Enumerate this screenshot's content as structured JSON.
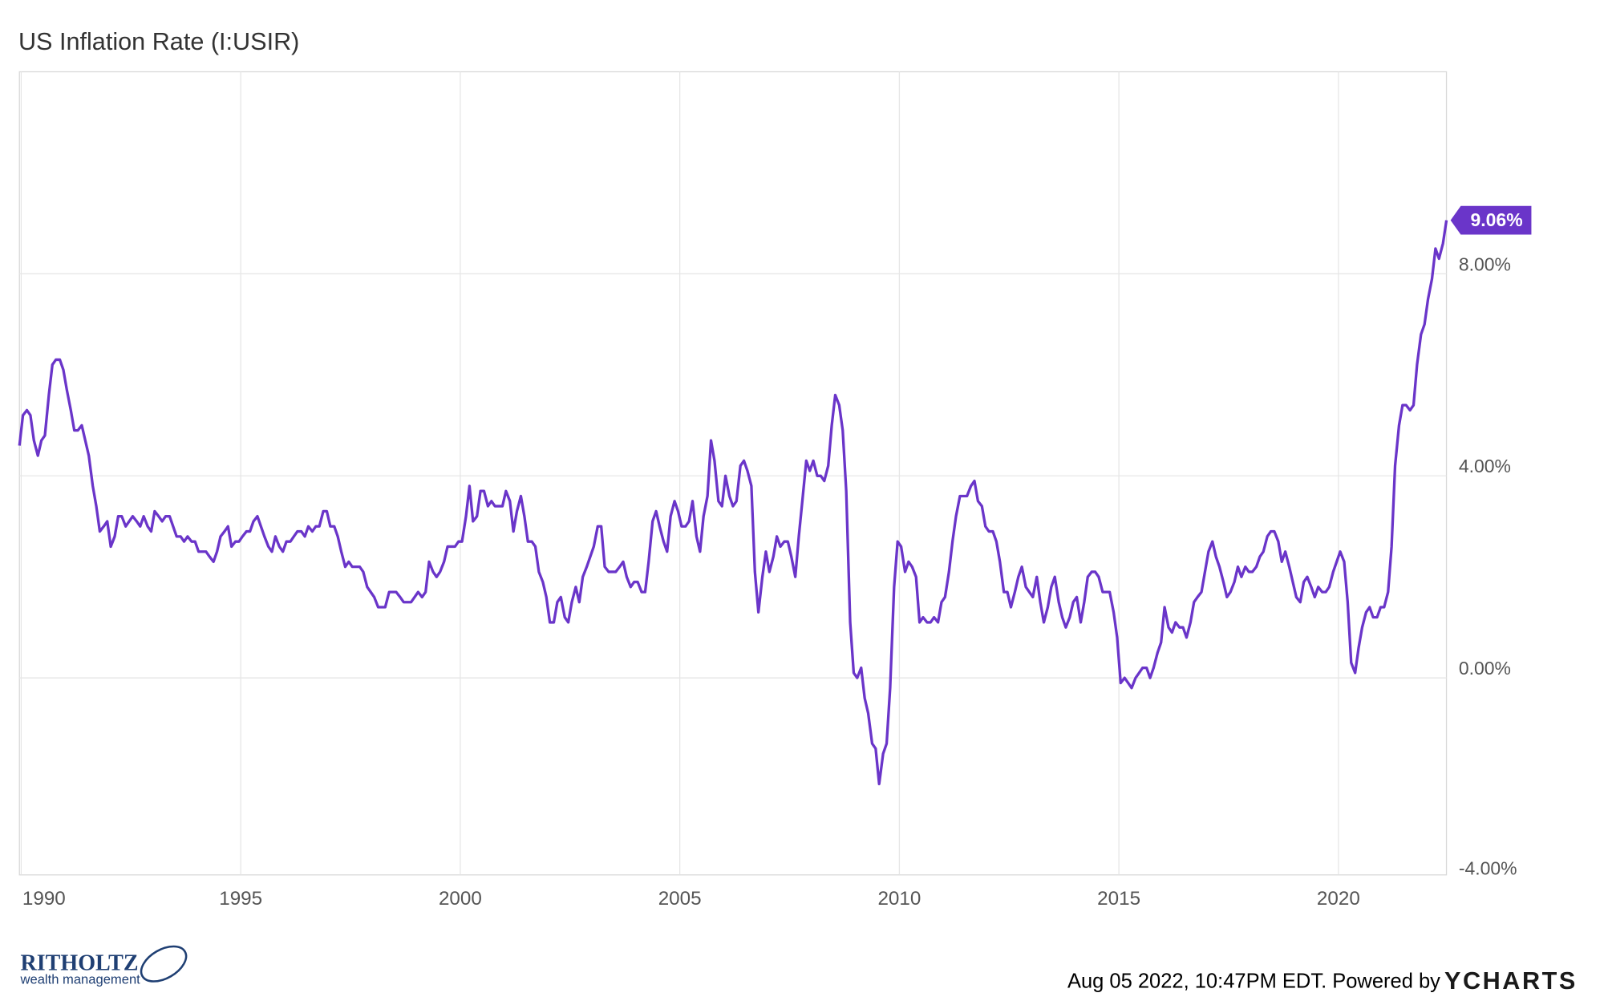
{
  "chart_data": {
    "type": "line",
    "title": "US Inflation Rate (I:USIR)",
    "color": "#6a35c9",
    "end_label": "9.06%",
    "xlim": [
      1989.96,
      2022.46
    ],
    "xticks": [
      1990,
      1995,
      2000,
      2005,
      2010,
      2015,
      2020
    ],
    "ylim": [
      -3.9,
      12
    ],
    "yticks": [
      {
        "value": -4,
        "label": "-4.00%"
      },
      {
        "value": 0,
        "label": "0.00%"
      },
      {
        "value": 4,
        "label": "4.00%"
      },
      {
        "value": 8,
        "label": "8.00%"
      }
    ],
    "grid": true,
    "x": [
      1989.96,
      1990.04,
      1990.13,
      1990.21,
      1990.29,
      1990.38,
      1990.46,
      1990.54,
      1990.63,
      1990.71,
      1990.79,
      1990.88,
      1990.96,
      1991.04,
      1991.13,
      1991.21,
      1991.29,
      1991.38,
      1991.46,
      1991.54,
      1991.63,
      1991.71,
      1991.79,
      1991.88,
      1991.96,
      1992.04,
      1992.13,
      1992.21,
      1992.29,
      1992.38,
      1992.46,
      1992.54,
      1992.63,
      1992.71,
      1992.79,
      1992.88,
      1992.96,
      1993.04,
      1993.13,
      1993.21,
      1993.29,
      1993.38,
      1993.46,
      1993.54,
      1993.63,
      1993.71,
      1993.79,
      1993.88,
      1993.96,
      1994.04,
      1994.13,
      1994.21,
      1994.29,
      1994.38,
      1994.46,
      1994.54,
      1994.63,
      1994.71,
      1994.79,
      1994.88,
      1994.96,
      1995.04,
      1995.13,
      1995.21,
      1995.29,
      1995.38,
      1995.46,
      1995.54,
      1995.63,
      1995.71,
      1995.79,
      1995.88,
      1995.96,
      1996.04,
      1996.13,
      1996.21,
      1996.29,
      1996.38,
      1996.46,
      1996.54,
      1996.63,
      1996.71,
      1996.79,
      1996.88,
      1996.96,
      1997.04,
      1997.13,
      1997.21,
      1997.29,
      1997.38,
      1997.46,
      1997.54,
      1997.63,
      1997.71,
      1997.79,
      1997.88,
      1997.96,
      1998.04,
      1998.13,
      1998.21,
      1998.29,
      1998.38,
      1998.46,
      1998.54,
      1998.63,
      1998.71,
      1998.79,
      1998.88,
      1998.96,
      1999.04,
      1999.13,
      1999.21,
      1999.29,
      1999.38,
      1999.46,
      1999.54,
      1999.63,
      1999.71,
      1999.79,
      1999.88,
      1999.96,
      2000.04,
      2000.13,
      2000.21,
      2000.29,
      2000.38,
      2000.46,
      2000.54,
      2000.63,
      2000.71,
      2000.79,
      2000.88,
      2000.96,
      2001.04,
      2001.13,
      2001.21,
      2001.29,
      2001.38,
      2001.46,
      2001.54,
      2001.63,
      2001.71,
      2001.79,
      2001.88,
      2001.96,
      2002.04,
      2002.13,
      2002.21,
      2002.29,
      2002.38,
      2002.46,
      2002.54,
      2002.63,
      2002.71,
      2002.79,
      2002.88,
      2002.96,
      2003.04,
      2003.13,
      2003.21,
      2003.29,
      2003.38,
      2003.46,
      2003.54,
      2003.63,
      2003.71,
      2003.79,
      2003.88,
      2003.96,
      2004.04,
      2004.13,
      2004.21,
      2004.29,
      2004.38,
      2004.46,
      2004.54,
      2004.63,
      2004.71,
      2004.79,
      2004.88,
      2004.96,
      2005.04,
      2005.13,
      2005.21,
      2005.29,
      2005.38,
      2005.46,
      2005.54,
      2005.63,
      2005.71,
      2005.79,
      2005.88,
      2005.96,
      2006.04,
      2006.13,
      2006.21,
      2006.29,
      2006.38,
      2006.46,
      2006.54,
      2006.63,
      2006.71,
      2006.79,
      2006.88,
      2006.96,
      2007.04,
      2007.13,
      2007.21,
      2007.29,
      2007.38,
      2007.46,
      2007.54,
      2007.63,
      2007.71,
      2007.79,
      2007.88,
      2007.96,
      2008.04,
      2008.13,
      2008.21,
      2008.29,
      2008.38,
      2008.46,
      2008.54,
      2008.63,
      2008.71,
      2008.79,
      2008.88,
      2008.96,
      2009.04,
      2009.13,
      2009.21,
      2009.29,
      2009.38,
      2009.46,
      2009.54,
      2009.63,
      2009.71,
      2009.79,
      2009.88,
      2009.96,
      2010.04,
      2010.13,
      2010.21,
      2010.29,
      2010.38,
      2010.46,
      2010.54,
      2010.63,
      2010.71,
      2010.79,
      2010.88,
      2010.96,
      2011.04,
      2011.13,
      2011.21,
      2011.29,
      2011.38,
      2011.46,
      2011.54,
      2011.63,
      2011.71,
      2011.79,
      2011.88,
      2011.96,
      2012.04,
      2012.13,
      2012.21,
      2012.29,
      2012.38,
      2012.46,
      2012.54,
      2012.63,
      2012.71,
      2012.79,
      2012.88,
      2012.96,
      2013.04,
      2013.13,
      2013.21,
      2013.29,
      2013.38,
      2013.46,
      2013.54,
      2013.63,
      2013.71,
      2013.79,
      2013.88,
      2013.96,
      2014.04,
      2014.13,
      2014.21,
      2014.29,
      2014.38,
      2014.46,
      2014.54,
      2014.63,
      2014.71,
      2014.79,
      2014.88,
      2014.96,
      2015.04,
      2015.13,
      2015.21,
      2015.29,
      2015.38,
      2015.46,
      2015.54,
      2015.63,
      2015.71,
      2015.79,
      2015.88,
      2015.96,
      2016.04,
      2016.13,
      2016.21,
      2016.29,
      2016.38,
      2016.46,
      2016.54,
      2016.63,
      2016.71,
      2016.79,
      2016.88,
      2016.96,
      2017.04,
      2017.13,
      2017.21,
      2017.29,
      2017.38,
      2017.46,
      2017.54,
      2017.63,
      2017.71,
      2017.79,
      2017.88,
      2017.96,
      2018.04,
      2018.13,
      2018.21,
      2018.29,
      2018.38,
      2018.46,
      2018.54,
      2018.63,
      2018.71,
      2018.79,
      2018.88,
      2018.96,
      2019.04,
      2019.13,
      2019.21,
      2019.29,
      2019.38,
      2019.46,
      2019.54,
      2019.63,
      2019.71,
      2019.79,
      2019.88,
      2019.96,
      2020.04,
      2020.13,
      2020.21,
      2020.29,
      2020.38,
      2020.46,
      2020.54,
      2020.63,
      2020.71,
      2020.79,
      2020.88,
      2020.96,
      2021.04,
      2021.13,
      2021.21,
      2021.29,
      2021.38,
      2021.46,
      2021.54,
      2021.63,
      2021.71,
      2021.79,
      2021.88,
      2021.96,
      2022.04,
      2022.13,
      2022.21,
      2022.29,
      2022.38,
      2022.46
    ],
    "values": [
      4.6,
      5.2,
      5.3,
      5.2,
      4.7,
      4.4,
      4.7,
      4.8,
      5.6,
      6.2,
      6.3,
      6.3,
      6.1,
      5.7,
      5.3,
      4.9,
      4.9,
      5.0,
      4.7,
      4.4,
      3.8,
      3.4,
      2.9,
      3.0,
      3.1,
      2.6,
      2.8,
      3.2,
      3.2,
      3.0,
      3.1,
      3.2,
      3.1,
      3.0,
      3.2,
      3.0,
      2.9,
      3.3,
      3.2,
      3.1,
      3.2,
      3.2,
      3.0,
      2.8,
      2.8,
      2.7,
      2.8,
      2.7,
      2.7,
      2.5,
      2.5,
      2.5,
      2.4,
      2.3,
      2.5,
      2.8,
      2.9,
      3.0,
      2.6,
      2.7,
      2.7,
      2.8,
      2.9,
      2.9,
      3.1,
      3.2,
      3.0,
      2.8,
      2.6,
      2.5,
      2.8,
      2.6,
      2.5,
      2.7,
      2.7,
      2.8,
      2.9,
      2.9,
      2.8,
      3.0,
      2.9,
      3.0,
      3.0,
      3.3,
      3.3,
      3.0,
      3.0,
      2.8,
      2.5,
      2.2,
      2.3,
      2.2,
      2.2,
      2.2,
      2.1,
      1.8,
      1.7,
      1.6,
      1.4,
      1.4,
      1.4,
      1.7,
      1.7,
      1.7,
      1.6,
      1.5,
      1.5,
      1.5,
      1.6,
      1.7,
      1.6,
      1.7,
      2.3,
      2.1,
      2.0,
      2.1,
      2.3,
      2.6,
      2.6,
      2.6,
      2.7,
      2.7,
      3.2,
      3.8,
      3.1,
      3.2,
      3.7,
      3.7,
      3.4,
      3.5,
      3.4,
      3.4,
      3.4,
      3.7,
      3.5,
      2.9,
      3.3,
      3.6,
      3.2,
      2.7,
      2.7,
      2.6,
      2.1,
      1.9,
      1.6,
      1.1,
      1.1,
      1.5,
      1.6,
      1.2,
      1.1,
      1.5,
      1.8,
      1.5,
      2.0,
      2.2,
      2.4,
      2.6,
      3.0,
      3.0,
      2.2,
      2.1,
      2.1,
      2.1,
      2.2,
      2.3,
      2.0,
      1.8,
      1.9,
      1.9,
      1.7,
      1.7,
      2.3,
      3.1,
      3.3,
      3.0,
      2.7,
      2.5,
      3.2,
      3.5,
      3.3,
      3.0,
      3.0,
      3.1,
      3.5,
      2.8,
      2.5,
      3.2,
      3.6,
      4.7,
      4.3,
      3.5,
      3.4,
      4.0,
      3.6,
      3.4,
      3.5,
      4.2,
      4.3,
      4.1,
      3.8,
      2.1,
      1.3,
      2.0,
      2.5,
      2.1,
      2.4,
      2.8,
      2.6,
      2.7,
      2.7,
      2.4,
      2.0,
      2.8,
      3.5,
      4.3,
      4.1,
      4.3,
      4.0,
      4.0,
      3.9,
      4.2,
      5.0,
      5.6,
      5.4,
      4.9,
      3.7,
      1.1,
      0.1,
      0.0,
      0.2,
      -0.4,
      -0.7,
      -1.3,
      -1.4,
      -2.1,
      -1.5,
      -1.3,
      -0.2,
      1.8,
      2.7,
      2.6,
      2.1,
      2.3,
      2.2,
      2.0,
      1.1,
      1.2,
      1.1,
      1.1,
      1.2,
      1.1,
      1.5,
      1.6,
      2.1,
      2.7,
      3.2,
      3.6,
      3.6,
      3.6,
      3.8,
      3.9,
      3.5,
      3.4,
      3.0,
      2.9,
      2.9,
      2.7,
      2.3,
      1.7,
      1.7,
      1.4,
      1.7,
      2.0,
      2.2,
      1.8,
      1.7,
      1.6,
      2.0,
      1.5,
      1.1,
      1.4,
      1.8,
      2.0,
      1.5,
      1.2,
      1.0,
      1.2,
      1.5,
      1.6,
      1.1,
      1.5,
      2.0,
      2.1,
      2.1,
      2.0,
      1.7,
      1.7,
      1.7,
      1.3,
      0.8,
      -0.1,
      0.0,
      -0.1,
      -0.2,
      0.0,
      0.1,
      0.2,
      0.2,
      0.0,
      0.2,
      0.5,
      0.7,
      1.4,
      1.0,
      0.9,
      1.1,
      1.0,
      1.0,
      0.8,
      1.1,
      1.5,
      1.6,
      1.7,
      2.1,
      2.5,
      2.7,
      2.4,
      2.2,
      1.9,
      1.6,
      1.7,
      1.9,
      2.2,
      2.0,
      2.2,
      2.1,
      2.1,
      2.2,
      2.4,
      2.5,
      2.8,
      2.9,
      2.9,
      2.7,
      2.3,
      2.5,
      2.2,
      1.9,
      1.6,
      1.5,
      1.9,
      2.0,
      1.8,
      1.6,
      1.8,
      1.7,
      1.7,
      1.8,
      2.1,
      2.3,
      2.5,
      2.3,
      1.5,
      0.3,
      0.1,
      0.6,
      1.0,
      1.3,
      1.4,
      1.2,
      1.2,
      1.4,
      1.4,
      1.7,
      2.6,
      4.2,
      5.0,
      5.4,
      5.4,
      5.3,
      5.4,
      6.2,
      6.8,
      7.0,
      7.5,
      7.9,
      8.5,
      8.3,
      8.6,
      9.06
    ]
  },
  "footer": {
    "timestamp": "Aug 05 2022, 10:47PM EDT. Powered by",
    "brand": "YCHARTS",
    "logo_name": "RITHOLTZ",
    "logo_tagline": "wealth management"
  }
}
